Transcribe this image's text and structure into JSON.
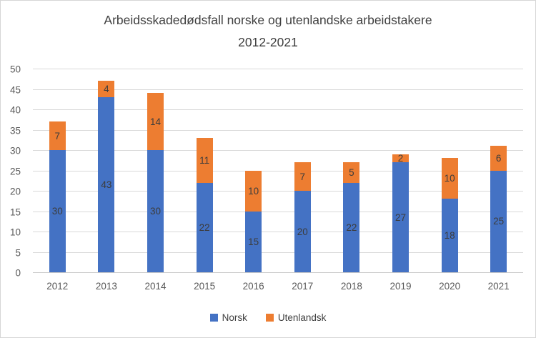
{
  "chart_data": {
    "type": "bar",
    "stacked": true,
    "title": "Arbeidsskadedødsfall norske og utenlandske arbeidstakere",
    "subtitle": "2012-2021",
    "categories": [
      "2012",
      "2013",
      "2014",
      "2015",
      "2016",
      "2017",
      "2018",
      "2019",
      "2020",
      "2021"
    ],
    "series": [
      {
        "name": "Norsk",
        "color": "#4472C4",
        "values": [
          30,
          43,
          30,
          22,
          15,
          20,
          22,
          27,
          18,
          25
        ]
      },
      {
        "name": "Utenlandsk",
        "color": "#ED7D31",
        "values": [
          7,
          4,
          14,
          11,
          10,
          7,
          5,
          2,
          10,
          6
        ]
      }
    ],
    "totals": [
      37,
      47,
      44,
      33,
      25,
      27,
      27,
      29,
      28,
      31
    ],
    "ylim": [
      0,
      50
    ],
    "ytick_step": 5,
    "grid": true,
    "legend_position": "bottom",
    "colors": {
      "gridline": "#D9D9D9",
      "axis_line": "#C9C9C9",
      "title_text": "#3F3F3F",
      "tick_text": "#595959",
      "bar_label_text": "#3C3C3C"
    }
  }
}
